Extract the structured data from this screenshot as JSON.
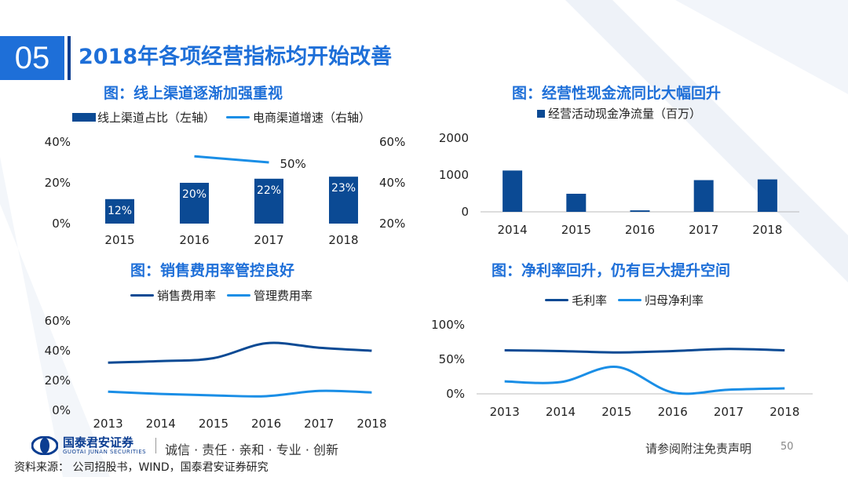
{
  "header": {
    "section_number": "05",
    "title": "2018年各项经营指标均开始改善"
  },
  "colors": {
    "dark_blue": "#0b4a94",
    "light_blue": "#1a8ee6",
    "accent": "#1e6fd8"
  },
  "charts": {
    "online": {
      "title": "图：线上渠道逐渐加强重视",
      "legend": [
        "线上渠道占比（左轴）",
        "电商渠道增速（右轴）"
      ]
    },
    "cashflow": {
      "title": "图：经营性现金流同比大幅回升",
      "legend": [
        "经营活动现金净流量（百万）"
      ]
    },
    "expense": {
      "title": "图：销售费用率管控良好",
      "legend": [
        "销售费用率",
        "管理费用率"
      ]
    },
    "margin": {
      "title": "图：净利率回升，仍有巨大提升空间",
      "legend": [
        "毛利率",
        "归母净利率"
      ]
    }
  },
  "chart_data": [
    {
      "type": "bar",
      "title": "图：线上渠道逐渐加强重视",
      "categories": [
        "2015",
        "2016",
        "2017",
        "2018"
      ],
      "series": [
        {
          "name": "线上渠道占比（左轴）",
          "type": "bar",
          "axis": "left",
          "values": [
            12,
            20,
            22,
            23
          ],
          "labels": [
            "12%",
            "20%",
            "22%",
            "23%"
          ]
        },
        {
          "name": "电商渠道增速（右轴）",
          "type": "line",
          "axis": "right",
          "x": [
            "2016",
            "2017"
          ],
          "values": [
            53,
            50
          ],
          "labels": [
            "",
            "50%"
          ]
        }
      ],
      "ylim_left": [
        0,
        40
      ],
      "yticks_left": [
        "0%",
        "20%",
        "40%"
      ],
      "ylim_right": [
        20,
        60
      ],
      "yticks_right": [
        "20%",
        "40%",
        "60%"
      ]
    },
    {
      "type": "bar",
      "title": "图：经营性现金流同比大幅回升",
      "categories": [
        "2014",
        "2015",
        "2016",
        "2017",
        "2018"
      ],
      "series": [
        {
          "name": "经营活动现金净流量（百万）",
          "values": [
            1120,
            490,
            40,
            860,
            880
          ]
        }
      ],
      "ylim": [
        0,
        2000
      ],
      "yticks": [
        "0",
        "1000",
        "2000"
      ]
    },
    {
      "type": "line",
      "title": "图：销售费用率管控良好",
      "categories": [
        "2013",
        "2014",
        "2015",
        "2016",
        "2017",
        "2018"
      ],
      "series": [
        {
          "name": "销售费用率",
          "values": [
            32,
            33,
            35,
            45,
            42,
            40
          ]
        },
        {
          "name": "管理费用率",
          "values": [
            12.5,
            11,
            10,
            9.5,
            13,
            12
          ]
        }
      ],
      "ylim": [
        0,
        60
      ],
      "yticks": [
        "0%",
        "20%",
        "40%",
        "60%"
      ]
    },
    {
      "type": "line",
      "title": "图：净利率回升，仍有巨大提升空间",
      "categories": [
        "2013",
        "2014",
        "2015",
        "2016",
        "2017",
        "2018"
      ],
      "series": [
        {
          "name": "毛利率",
          "values": [
            63,
            62,
            60,
            62,
            65,
            63
          ]
        },
        {
          "name": "归母净利率",
          "values": [
            18,
            17,
            39,
            2,
            6,
            8
          ]
        }
      ],
      "ylim": [
        0,
        100
      ],
      "yticks": [
        "0%",
        "50%",
        "100%"
      ]
    }
  ],
  "footer": {
    "company_name": "国泰君安证券",
    "company_name_en": "GUOTAI JUNAN SECURITIES",
    "slogan": "诚信 · 责任 · 亲和 · 专业 · 创新",
    "disclaimer": "请参阅附注免责声明",
    "page_number": "50",
    "source": "资料来源： 公司招股书，WIND，国泰君安证券研究"
  }
}
